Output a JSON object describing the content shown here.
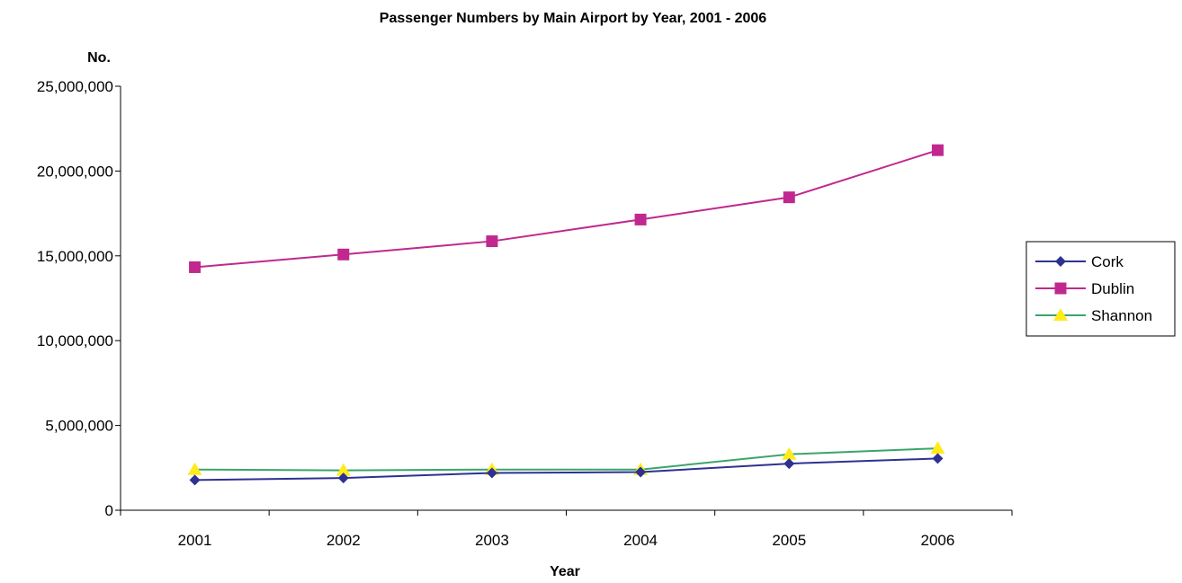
{
  "chart_data": {
    "type": "line",
    "title": "Passenger Numbers by Main Airport by Year, 2001 - 2006",
    "xlabel": "Year",
    "ylabel": "No.",
    "categories": [
      "2001",
      "2002",
      "2003",
      "2004",
      "2005",
      "2006"
    ],
    "ylim": [
      0,
      25000000
    ],
    "yticks": [
      0,
      5000000,
      10000000,
      15000000,
      20000000,
      25000000
    ],
    "ytick_labels": [
      "0",
      "5,000,000",
      "10,000,000",
      "15,000,000",
      "20,000,000",
      "25,000,000"
    ],
    "grid": false,
    "legend_position": "right",
    "series": [
      {
        "name": "Cork",
        "values": [
          1780000,
          1900000,
          2200000,
          2250000,
          2750000,
          3050000
        ],
        "color": "#2e3192",
        "marker": "diamond",
        "marker_color": "#2e3192"
      },
      {
        "name": "Dublin",
        "values": [
          14330000,
          15080000,
          15860000,
          17140000,
          18450000,
          21230000
        ],
        "color": "#c0288f",
        "marker": "square",
        "marker_color": "#c0288f"
      },
      {
        "name": "Shannon",
        "values": [
          2400000,
          2350000,
          2400000,
          2400000,
          3300000,
          3650000
        ],
        "color": "#3aa56a",
        "marker": "triangle",
        "marker_color": "#ffeb1a"
      }
    ]
  }
}
